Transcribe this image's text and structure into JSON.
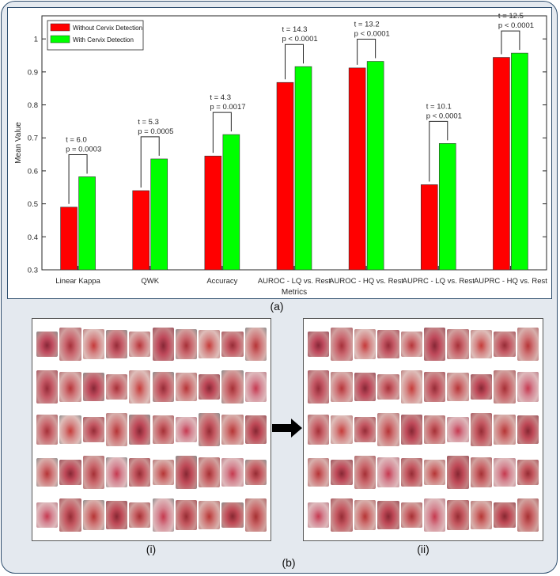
{
  "labels": {
    "a": "(a)",
    "b": "(b)",
    "i": "(i)",
    "ii": "(ii)"
  },
  "chart_data": {
    "type": "bar",
    "categories": [
      "Linear Kappa",
      "QWK",
      "Accuracy",
      "AUROC - LQ vs. Rest",
      "AUROC - HQ vs. Rest",
      "AUPRC - LQ vs. Rest",
      "AUPRC - HQ vs. Rest"
    ],
    "series": [
      {
        "name": "Without Cervix Detection",
        "color": "#ff0000",
        "values": [
          0.49,
          0.54,
          0.645,
          0.868,
          0.912,
          0.558,
          0.944
        ]
      },
      {
        "name": "With Cervix Detection",
        "color": "#00ff00",
        "values": [
          0.582,
          0.636,
          0.71,
          0.916,
          0.932,
          0.683,
          0.957
        ]
      }
    ],
    "annotations": [
      {
        "t": "t = 6.0",
        "p": "p = 0.0003"
      },
      {
        "t": "t = 5.3",
        "p": "p = 0.0005"
      },
      {
        "t": "t = 4.3",
        "p": "p = 0.0017"
      },
      {
        "t": "t = 14.3",
        "p": "p < 0.0001"
      },
      {
        "t": "t = 13.2",
        "p": "p < 0.0001"
      },
      {
        "t": "t = 10.1",
        "p": "p < 0.0001"
      },
      {
        "t": "t = 12.5",
        "p": "p < 0.0001"
      }
    ],
    "xlabel": "Metrics",
    "ylabel": "Mean Value",
    "ylim": [
      0.3,
      1.07
    ],
    "yticks": [
      "0.3",
      "0.4",
      "0.5",
      "0.6",
      "0.7",
      "0.8",
      "0.9",
      "1"
    ],
    "grid": false,
    "legend_position": "top-left"
  }
}
